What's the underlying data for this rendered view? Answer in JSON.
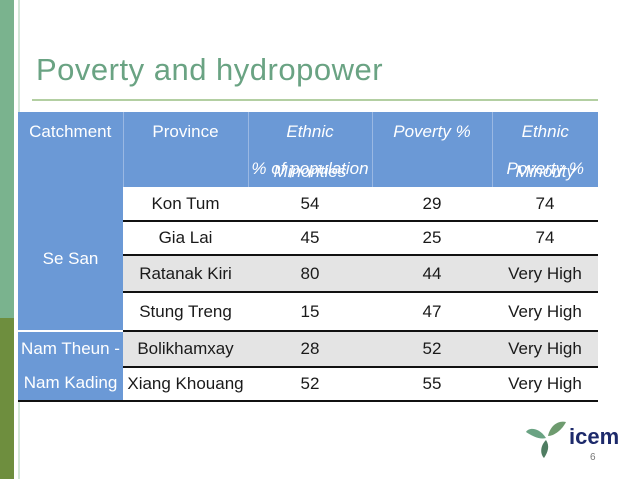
{
  "slide": {
    "title": "Poverty and hydropower",
    "page_number": "6",
    "logo_text": "icem"
  },
  "table": {
    "headers": {
      "catchment": "Catchment",
      "province": "Province",
      "ethnic_minorities_line1": "Ethnic Minorities",
      "ethnic_minorities_line2": "% of population",
      "poverty": "Poverty %",
      "ethnic_poverty_line1": "Ethnic Minority",
      "ethnic_poverty_line2": "Poverty %"
    },
    "groups": {
      "se_san": "Se San",
      "nam_line1": "Nam Theun -",
      "nam_line2": "Nam Kading"
    },
    "rows": [
      {
        "province": "Kon Tum",
        "ethnic": "54",
        "poverty": "29",
        "ethnic_poverty": "74"
      },
      {
        "province": "Gia Lai",
        "ethnic": "45",
        "poverty": "25",
        "ethnic_poverty": "74"
      },
      {
        "province": "Ratanak Kiri",
        "ethnic": "80",
        "poverty": "44",
        "ethnic_poverty": "Very High"
      },
      {
        "province": "Stung Treng",
        "ethnic": "15",
        "poverty": "47",
        "ethnic_poverty": "Very High"
      },
      {
        "province": "Bolikhamxay",
        "ethnic": "28",
        "poverty": "52",
        "ethnic_poverty": "Very High"
      },
      {
        "province": "Xiang Khouang",
        "ethnic": "52",
        "poverty": "55",
        "ethnic_poverty": "Very High"
      }
    ]
  },
  "colors": {
    "header_blue": "#6b99d6",
    "title_green": "#6aa383",
    "stripe_green": "#7ab38e",
    "stripe_olive": "#6e8e3e"
  }
}
